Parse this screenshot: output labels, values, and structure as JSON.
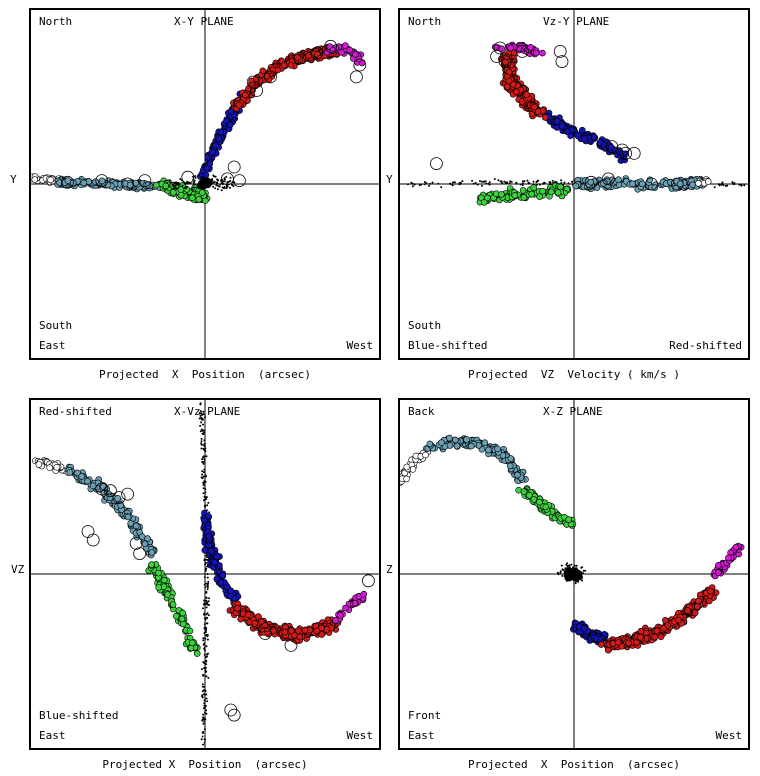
{
  "colors": {
    "white": "#ffffff",
    "lightblue": "#6a9fb4",
    "green": "#3dd23d",
    "blue": "#1414b4",
    "red": "#d21a1a",
    "magenta": "#d21ad2",
    "black": "#000000"
  },
  "chart_data": [
    {
      "type": "scatter",
      "title": "X-Y PLANE",
      "xlabel": "Projected  X  Position  (arcsec)",
      "ylabel": "Y",
      "corners": {
        "top_left": "North",
        "bottom_left_upper": "South",
        "bottom_left": "East",
        "bottom_right": "West"
      },
      "series": [
        {
          "color": "white",
          "path": [
            [
              -1.0,
              0.03
            ],
            [
              -0.88,
              0.02
            ],
            [
              -0.8,
              0.01
            ]
          ],
          "spread": 0.03,
          "count": 40
        },
        {
          "color": "lightblue",
          "path": [
            [
              -0.85,
              0.01
            ],
            [
              -0.6,
              0.0
            ],
            [
              -0.4,
              -0.01
            ],
            [
              -0.2,
              -0.01
            ]
          ],
          "spread": 0.025,
          "count": 160
        },
        {
          "color": "green",
          "path": [
            [
              -0.25,
              0.0
            ],
            [
              -0.1,
              -0.05
            ],
            [
              0.0,
              -0.08
            ]
          ],
          "spread": 0.05,
          "count": 110
        },
        {
          "color": "blue",
          "path": [
            [
              -0.02,
              0.05
            ],
            [
              0.05,
              0.2
            ],
            [
              0.12,
              0.35
            ],
            [
              0.22,
              0.5
            ]
          ],
          "spread": 0.035,
          "count": 130
        },
        {
          "color": "red",
          "path": [
            [
              0.18,
              0.45
            ],
            [
              0.32,
              0.62
            ],
            [
              0.48,
              0.72
            ],
            [
              0.62,
              0.76
            ],
            [
              0.75,
              0.78
            ]
          ],
          "spread": 0.04,
          "count": 300
        },
        {
          "color": "magenta",
          "path": [
            [
              0.72,
              0.8
            ],
            [
              0.83,
              0.79
            ],
            [
              0.92,
              0.72
            ]
          ],
          "spread": 0.04,
          "count": 40
        },
        {
          "color": "black",
          "path": [
            [
              -0.2,
              0.0
            ],
            [
              0.0,
              0.02
            ],
            [
              0.15,
              0.0
            ]
          ],
          "spread": 0.06,
          "count": 110,
          "dots": true
        },
        {
          "color": "black",
          "path": [
            [
              -0.02,
              0.0
            ],
            [
              0.02,
              0.01
            ]
          ],
          "spread": 0.02,
          "count": 40
        }
      ],
      "rings": [
        [
          -0.6,
          0.02
        ],
        [
          -0.45,
          0.0
        ],
        [
          -0.35,
          0.02
        ],
        [
          0.13,
          0.03
        ],
        [
          0.17,
          0.1
        ],
        [
          0.2,
          0.02
        ],
        [
          0.38,
          0.63
        ],
        [
          0.55,
          0.74
        ],
        [
          0.65,
          0.77
        ],
        [
          0.73,
          0.81
        ],
        [
          0.88,
          0.63
        ],
        [
          0.9,
          0.7
        ],
        [
          -0.8,
          0.01
        ],
        [
          -0.1,
          0.04
        ],
        [
          0.3,
          0.55
        ],
        [
          0.28,
          0.6
        ]
      ]
    },
    {
      "type": "scatter",
      "title": "Vz-Y PLANE",
      "xlabel": "Projected  VZ  Velocity ( km/s )",
      "ylabel": "Y",
      "corners": {
        "top_left": "North",
        "bottom_left_upper": "South",
        "bottom_left": "Blue-shifted",
        "bottom_right": "Red-shifted"
      },
      "series": [
        {
          "color": "black",
          "path": [
            [
              -1.0,
              0.0
            ],
            [
              -0.5,
              0.01
            ],
            [
              0.0,
              0.0
            ],
            [
              0.5,
              0.0
            ],
            [
              1.0,
              0.0
            ]
          ],
          "spread": 0.025,
          "count": 180,
          "dots": true
        },
        {
          "color": "green",
          "path": [
            [
              -0.55,
              -0.08
            ],
            [
              -0.3,
              -0.06
            ],
            [
              -0.05,
              -0.04
            ]
          ],
          "spread": 0.05,
          "count": 100
        },
        {
          "color": "lightblue",
          "path": [
            [
              0.0,
              0.0
            ],
            [
              0.3,
              0.0
            ],
            [
              0.6,
              0.0
            ],
            [
              0.75,
              0.01
            ]
          ],
          "spread": 0.04,
          "count": 170
        },
        {
          "color": "white",
          "path": [
            [
              0.72,
              0.01
            ],
            [
              0.78,
              0.02
            ]
          ],
          "spread": 0.02,
          "count": 12
        },
        {
          "color": "blue",
          "path": [
            [
              0.3,
              0.15
            ],
            [
              0.15,
              0.25
            ],
            [
              -0.05,
              0.33
            ],
            [
              -0.15,
              0.4
            ]
          ],
          "spread": 0.04,
          "count": 130
        },
        {
          "color": "red",
          "path": [
            [
              -0.2,
              0.42
            ],
            [
              -0.3,
              0.52
            ],
            [
              -0.38,
              0.62
            ],
            [
              -0.38,
              0.75
            ]
          ],
          "spread": 0.05,
          "count": 300
        },
        {
          "color": "magenta",
          "path": [
            [
              -0.45,
              0.8
            ],
            [
              -0.3,
              0.8
            ],
            [
              -0.2,
              0.77
            ]
          ],
          "spread": 0.03,
          "count": 40
        }
      ],
      "rings": [
        [
          -0.45,
          0.75
        ],
        [
          -0.4,
          0.72
        ],
        [
          -0.3,
          0.78
        ],
        [
          -0.43,
          0.8
        ],
        [
          -0.08,
          0.78
        ],
        [
          -0.07,
          0.72
        ],
        [
          0.22,
          0.22
        ],
        [
          0.28,
          0.2
        ],
        [
          0.3,
          0.18
        ],
        [
          0.35,
          0.18
        ],
        [
          -0.8,
          0.12
        ],
        [
          0.1,
          0.01
        ],
        [
          0.2,
          0.03
        ],
        [
          0.45,
          0.0
        ],
        [
          0.6,
          0.0
        ]
      ]
    },
    {
      "type": "scatter",
      "title": "X-Vz PLANE",
      "xlabel": "Projected X  Position  (arcsec)",
      "ylabel": "VZ",
      "corners": {
        "top_left": "Red-shifted",
        "bottom_left_upper": "Blue-shifted",
        "bottom_left": "East",
        "bottom_right": "West"
      },
      "series": [
        {
          "color": "black",
          "path": [
            [
              -0.02,
              1.0
            ],
            [
              0.0,
              0.5
            ],
            [
              0.01,
              0.0
            ],
            [
              0.0,
              -0.5
            ],
            [
              -0.01,
              -1.0
            ]
          ],
          "spread": 0.025,
          "count": 260,
          "dots": true
        },
        {
          "color": "white",
          "path": [
            [
              -0.98,
              0.66
            ],
            [
              -0.88,
              0.64
            ],
            [
              -0.8,
              0.6
            ]
          ],
          "spread": 0.03,
          "count": 40
        },
        {
          "color": "lightblue",
          "path": [
            [
              -0.8,
              0.62
            ],
            [
              -0.6,
              0.5
            ],
            [
              -0.45,
              0.35
            ],
            [
              -0.3,
              0.12
            ]
          ],
          "spread": 0.04,
          "count": 160
        },
        {
          "color": "green",
          "path": [
            [
              -0.3,
              0.05
            ],
            [
              -0.2,
              -0.15
            ],
            [
              -0.05,
              -0.45
            ]
          ],
          "spread": 0.04,
          "count": 110
        },
        {
          "color": "blue",
          "path": [
            [
              0.0,
              0.35
            ],
            [
              0.03,
              0.15
            ],
            [
              0.1,
              -0.05
            ],
            [
              0.18,
              -0.15
            ]
          ],
          "spread": 0.04,
          "count": 130
        },
        {
          "color": "red",
          "path": [
            [
              0.18,
              -0.2
            ],
            [
              0.35,
              -0.32
            ],
            [
              0.55,
              -0.36
            ],
            [
              0.75,
              -0.3
            ]
          ],
          "spread": 0.05,
          "count": 300
        },
        {
          "color": "magenta",
          "path": [
            [
              0.75,
              -0.28
            ],
            [
              0.85,
              -0.18
            ],
            [
              0.93,
              -0.12
            ]
          ],
          "spread": 0.03,
          "count": 40
        }
      ],
      "rings": [
        [
          -0.55,
          0.49
        ],
        [
          -0.5,
          0.45
        ],
        [
          -0.45,
          0.47
        ],
        [
          -0.6,
          0.5
        ],
        [
          -0.68,
          0.25
        ],
        [
          -0.65,
          0.2
        ],
        [
          -0.4,
          0.18
        ],
        [
          -0.38,
          0.12
        ],
        [
          0.15,
          -0.8
        ],
        [
          0.17,
          -0.83
        ],
        [
          0.95,
          -0.04
        ],
        [
          0.35,
          -0.35
        ],
        [
          0.5,
          -0.42
        ]
      ]
    },
    {
      "type": "scatter",
      "title": "X-Z PLANE",
      "xlabel": "Projected  X  Position  (arcsec)",
      "ylabel": "Z",
      "corners": {
        "top_left": "Back",
        "bottom_left_upper": "Front",
        "bottom_left": "East",
        "bottom_right": "West"
      },
      "series": [
        {
          "color": "white",
          "path": [
            [
              -1.0,
              0.55
            ],
            [
              -0.95,
              0.65
            ],
            [
              -0.85,
              0.72
            ]
          ],
          "spread": 0.04,
          "count": 40
        },
        {
          "color": "lightblue",
          "path": [
            [
              -0.85,
              0.75
            ],
            [
              -0.6,
              0.78
            ],
            [
              -0.4,
              0.7
            ],
            [
              -0.3,
              0.55
            ]
          ],
          "spread": 0.04,
          "count": 160
        },
        {
          "color": "green",
          "path": [
            [
              -0.3,
              0.5
            ],
            [
              -0.15,
              0.38
            ],
            [
              0.0,
              0.28
            ]
          ],
          "spread": 0.035,
          "count": 110
        },
        {
          "color": "black",
          "path": [
            [
              -0.05,
              0.01
            ],
            [
              0.02,
              0.0
            ]
          ],
          "spread": 0.07,
          "count": 140,
          "dots": true
        },
        {
          "color": "black",
          "path": [
            [
              -0.03,
              0.0
            ],
            [
              0.01,
              0.0
            ]
          ],
          "spread": 0.03,
          "count": 40
        },
        {
          "color": "blue",
          "path": [
            [
              0.0,
              -0.3
            ],
            [
              0.1,
              -0.36
            ],
            [
              0.17,
              -0.38
            ]
          ],
          "spread": 0.035,
          "count": 130
        },
        {
          "color": "red",
          "path": [
            [
              0.18,
              -0.42
            ],
            [
              0.4,
              -0.38
            ],
            [
              0.6,
              -0.28
            ],
            [
              0.8,
              -0.1
            ]
          ],
          "spread": 0.05,
          "count": 300
        },
        {
          "color": "magenta",
          "path": [
            [
              0.82,
              0.0
            ],
            [
              0.9,
              0.08
            ],
            [
              0.97,
              0.17
            ]
          ],
          "spread": 0.04,
          "count": 40
        }
      ],
      "rings": []
    }
  ]
}
